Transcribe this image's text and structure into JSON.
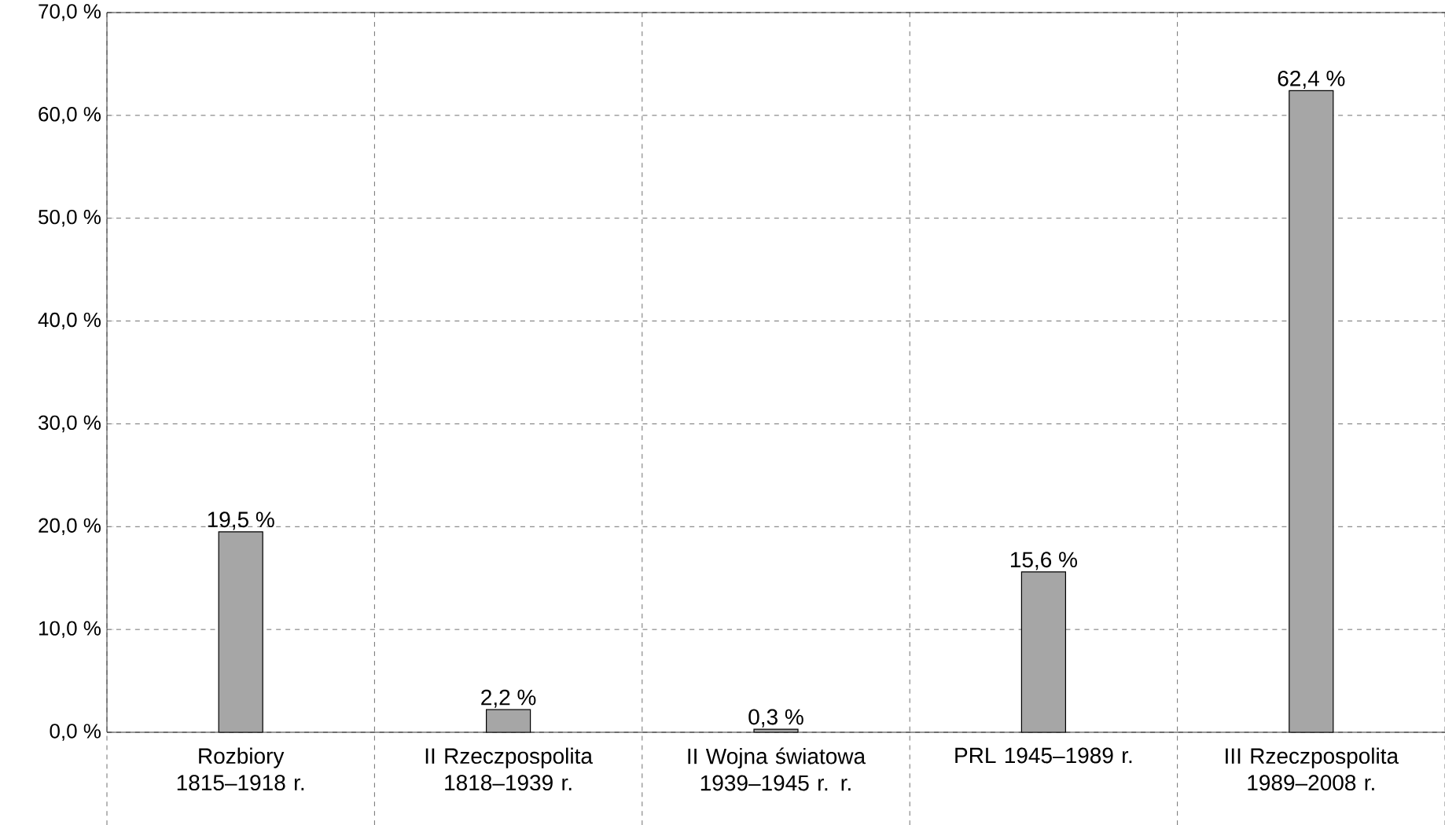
{
  "chart_data": {
    "type": "bar",
    "categories": [
      "Rozbiory 1815–1918 r.",
      "II Rzeczpospolita 1818–1939 r.",
      "II Wojna światowa 1939–1945 r. r.",
      "PRL 1945–1989 r.",
      "III Rzeczpospolita 1989–2008 r."
    ],
    "values": [
      19.5,
      2.2,
      0.3,
      15.6,
      62.4
    ],
    "value_labels": [
      "19,5 %",
      "2,2 %",
      "0,3 %",
      "15,6 %",
      "62,4 %"
    ],
    "color": "#a6a6a6",
    "ylim": [
      0,
      70
    ],
    "yticks": [
      {
        "value": 0,
        "label": "0,0 %"
      },
      {
        "value": 10,
        "label": "10,0 %"
      },
      {
        "value": 20,
        "label": "20,0 %"
      },
      {
        "value": 30,
        "label": "30,0 %"
      },
      {
        "value": 40,
        "label": "40,0 %"
      },
      {
        "value": 50,
        "label": "50,0 %"
      },
      {
        "value": 60,
        "label": "60,0 %"
      },
      {
        "value": 70,
        "label": "70,0 %"
      }
    ],
    "grid": true
  }
}
